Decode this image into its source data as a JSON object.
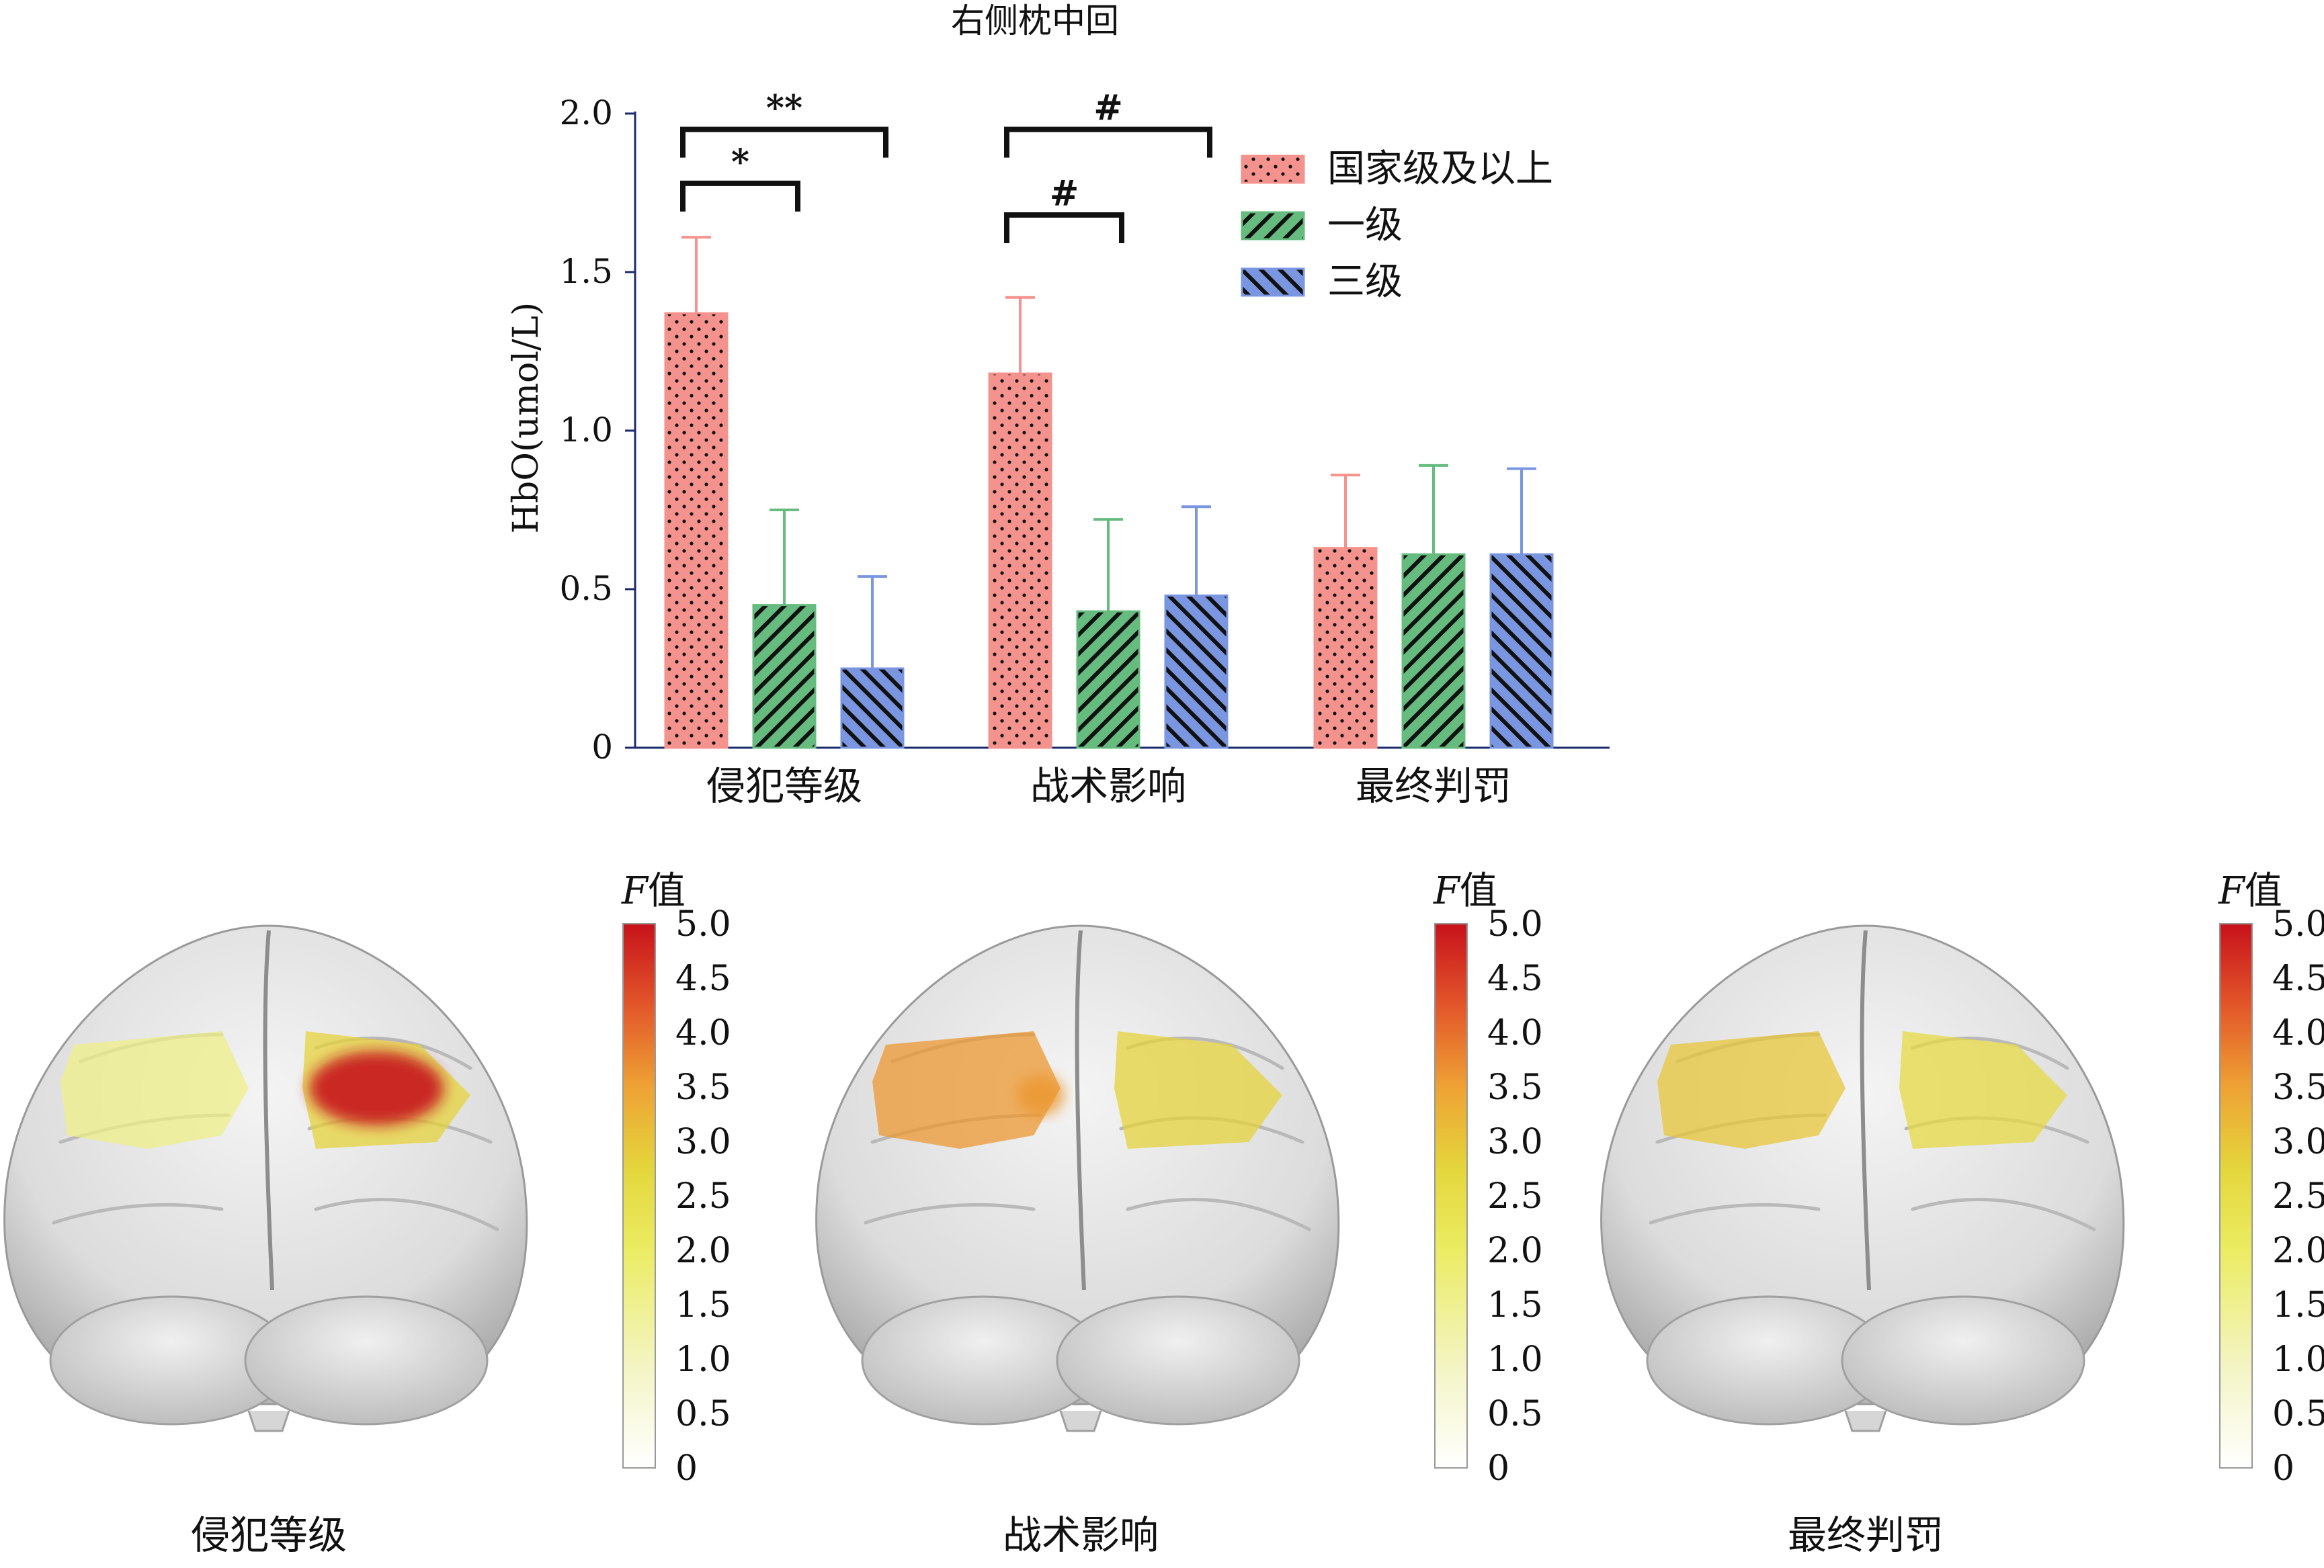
{
  "chart_data": {
    "type": "bar",
    "title": "右侧枕中回",
    "ylabel": "HbO(umol/L)",
    "xlabel": "",
    "ylim": [
      0,
      2.0
    ],
    "yticks": [
      "0",
      "0.5",
      "1.0",
      "1.5",
      "2.0"
    ],
    "categories": [
      "侵犯等级",
      "战术影响",
      "最终判罚"
    ],
    "legend_position": "top-right",
    "series": [
      {
        "name": "国家级及以上",
        "color": "#f4928d",
        "pattern": "dots",
        "values": [
          1.37,
          1.18,
          0.63
        ],
        "errors": [
          0.24,
          0.24,
          0.23
        ]
      },
      {
        "name": "一级",
        "color": "#66bb7e",
        "pattern": "diag-right",
        "values": [
          0.45,
          0.43,
          0.61
        ],
        "errors": [
          0.3,
          0.29,
          0.28
        ]
      },
      {
        "name": "三级",
        "color": "#7a96e0",
        "pattern": "diag-left",
        "values": [
          0.25,
          0.48,
          0.61
        ],
        "errors": [
          0.29,
          0.28,
          0.27
        ]
      }
    ],
    "significance": [
      {
        "category": 0,
        "from_series": 0,
        "to_series": 1,
        "label": "*",
        "level": 1.78
      },
      {
        "category": 0,
        "from_series": 0,
        "to_series": 2,
        "label": "**",
        "level": 1.95
      },
      {
        "category": 1,
        "from_series": 0,
        "to_series": 1,
        "label": "#",
        "level": 1.68
      },
      {
        "category": 1,
        "from_series": 0,
        "to_series": 2,
        "label": "#",
        "level": 1.95
      }
    ]
  },
  "brain_maps": {
    "colorbar_title_italic": "F",
    "colorbar_title_rest": "值",
    "colorbar_ticks": [
      "0",
      "0.5",
      "1.0",
      "1.5",
      "2.0",
      "2.5",
      "3.0",
      "3.5",
      "4.0",
      "4.5",
      "5.0"
    ],
    "colorbar_range": [
      0,
      5.0
    ],
    "panels": [
      {
        "label": "侵犯等级",
        "left_activation": 1.6,
        "right_activation": 5.0
      },
      {
        "label": "战术影响",
        "left_activation": 3.6,
        "right_activation": 3.1
      },
      {
        "label": "最终判罚",
        "left_activation": 3.0,
        "right_activation": 2.6
      }
    ]
  }
}
